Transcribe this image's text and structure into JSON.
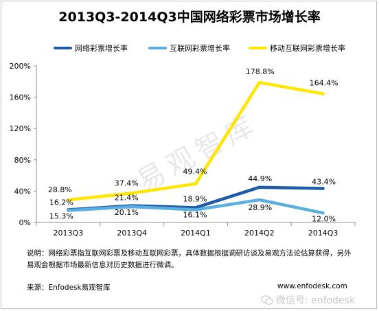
{
  "chart_data": {
    "type": "line",
    "title": "2013Q3-2014Q3中国网络彩票市场增长率",
    "categories": [
      "2013Q3",
      "2013Q4",
      "2014Q1",
      "2014Q2",
      "2014Q3"
    ],
    "y_ticks": [
      "0%",
      "40%",
      "80%",
      "120%",
      "160%",
      "200%"
    ],
    "ylim": [
      0,
      200
    ],
    "y_unit": "%",
    "grid": false,
    "legend_position": "top",
    "series": [
      {
        "name": "网络彩票增长率",
        "color": "#1f5ca8",
        "values": [
          16.2,
          21.4,
          18.9,
          44.9,
          43.4
        ],
        "labels": [
          "16.2%",
          "21.4%",
          "18.9%",
          "44.9%",
          "43.4%"
        ]
      },
      {
        "name": "互联网彩票增长率",
        "color": "#5aaee0",
        "values": [
          15.3,
          20.1,
          16.1,
          28.9,
          12.0
        ],
        "labels": [
          "15.3%",
          "20.1%",
          "16.1%",
          "28.9%",
          "12.0%"
        ]
      },
      {
        "name": "移动互联网彩票增长率",
        "color": "#ffe600",
        "values": [
          28.8,
          37.4,
          49.4,
          178.8,
          164.4
        ],
        "labels": [
          "28.8%",
          "37.4%",
          "49.4%",
          "178.8%",
          "164.4%"
        ]
      }
    ]
  },
  "note": "说明：网络彩票指互联网彩票及移动互联网彩票，具体数据根据调研访谈及易观方法论估算获得，另外易观会根据市场最新信息对历史数据进行微调。",
  "source": "来源：Enfodesk易观智库",
  "website": "www.enfodesk.com",
  "weixin": "微信号: enfodesk",
  "watermark": "易观智库"
}
